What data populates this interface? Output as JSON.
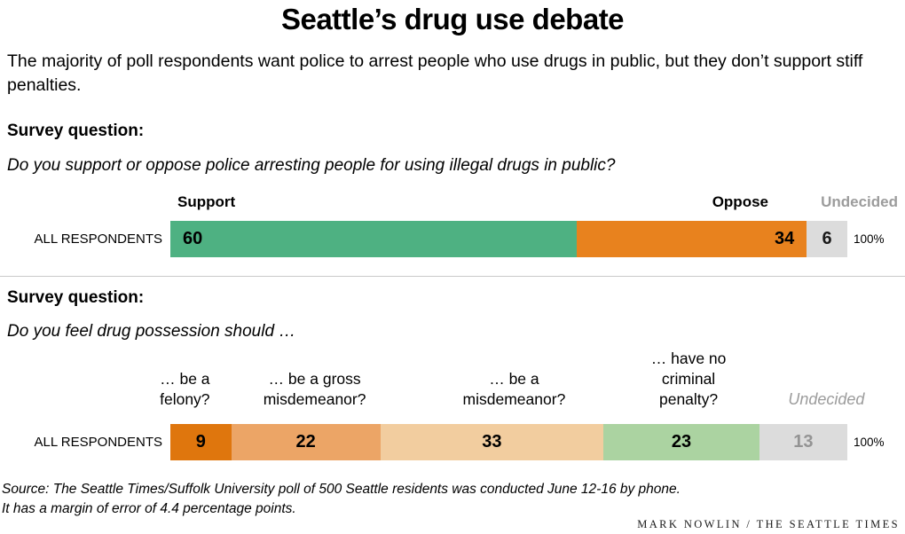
{
  "chart_data": [
    {
      "type": "bar",
      "stacked": true,
      "orientation": "horizontal",
      "title": "Do you support or oppose police arresting people for using illegal drugs in public?",
      "row": "ALL RESPONDENTS",
      "categories": [
        "Support",
        "Oppose",
        "Undecided"
      ],
      "values": [
        60,
        34,
        6
      ],
      "unit": "%",
      "total_label": "100%",
      "colors": [
        "#4eb182",
        "#e8821e",
        "#dcdcdc"
      ]
    },
    {
      "type": "bar",
      "stacked": true,
      "orientation": "horizontal",
      "title": "Do you feel drug possession should …",
      "row": "ALL RESPONDENTS",
      "categories": [
        "… be a felony?",
        "… be a gross misdemeanor?",
        "… be a misdemeanor?",
        "… have no criminal penalty?",
        "Undecided"
      ],
      "values": [
        9,
        22,
        33,
        23,
        13
      ],
      "unit": "%",
      "total_label": "100%",
      "colors": [
        "#df760d",
        "#eca566",
        "#f2cd9f",
        "#abd3a1",
        "#dcdcdc"
      ]
    }
  ],
  "title": "Seattle’s drug use debate",
  "intro": "The majority of poll respondents want police to arrest people who use drugs in public, but they don’t support stiff penalties.",
  "chart1": {
    "survey_label": "Survey question:",
    "question": "Do you support or oppose police arresting people for using illegal drugs in public?",
    "row_label": "ALL RESPONDENTS",
    "total_label": "100%",
    "segments": [
      {
        "label": "Support",
        "value": 60,
        "color": "#4eb182",
        "number_color": "#000000"
      },
      {
        "label": "Oppose",
        "value": 34,
        "color": "#e8821e",
        "number_color": "#000000"
      },
      {
        "label": "Undecided",
        "value": 6,
        "color": "#dcdcdc",
        "number_color": "#1a1a1a"
      }
    ]
  },
  "chart2": {
    "survey_label": "Survey question:",
    "question": "Do you feel drug possession should …",
    "row_label": "ALL RESPONDENTS",
    "total_label": "100%",
    "segments": [
      {
        "label": "… be a\nfelony?",
        "value": 9,
        "color": "#df760d",
        "number_color": "#000000"
      },
      {
        "label": "… be a gross\nmisdemeanor?",
        "value": 22,
        "color": "#eca566",
        "number_color": "#000000"
      },
      {
        "label": "… be a\nmisdemeanor?",
        "value": 33,
        "color": "#f2cd9f",
        "number_color": "#000000"
      },
      {
        "label": "… have no\ncriminal\npenalty?",
        "value": 23,
        "color": "#abd3a1",
        "number_color": "#000000"
      },
      {
        "label": "Undecided",
        "value": 13,
        "color": "#dcdcdc",
        "number_color": "#949494"
      }
    ]
  },
  "source": "Source: The Seattle Times/Suffolk University poll of 500 Seattle residents was conducted June 12-16 by phone.\nIt has a margin of error of 4.4 percentage points.",
  "credit": "MARK NOWLIN / THE SEATTLE TIMES"
}
